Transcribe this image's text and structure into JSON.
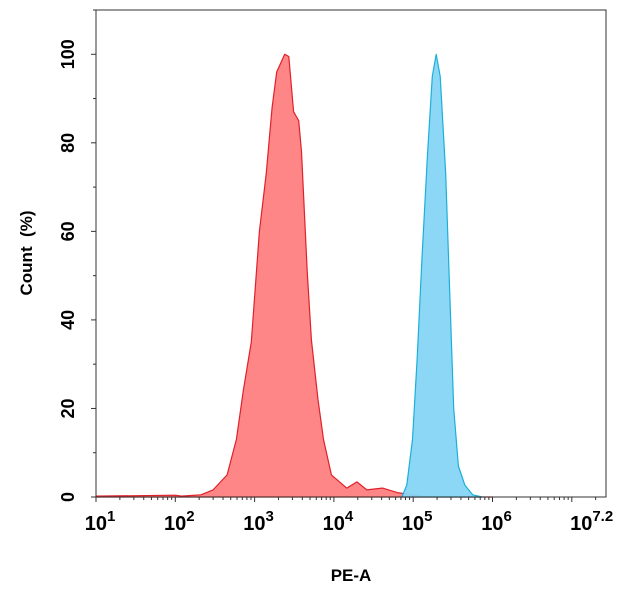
{
  "chart_data": {
    "type": "area",
    "xlabel": "PE-A",
    "ylabel": "Count  (%)",
    "xscale": "log",
    "xlim": [
      10,
      27000000
    ],
    "ylim": [
      0,
      110
    ],
    "grid": false,
    "x_ticks": [
      {
        "base": "10",
        "exp": "1",
        "value": 10
      },
      {
        "base": "10",
        "exp": "2",
        "value": 100
      },
      {
        "base": "10",
        "exp": "3",
        "value": 1000
      },
      {
        "base": "10",
        "exp": "4",
        "value": 10000
      },
      {
        "base": "10",
        "exp": "5",
        "value": 100000
      },
      {
        "base": "10",
        "exp": "6",
        "value": 1000000
      },
      {
        "base": "10",
        "exp": "7.2",
        "value": 15848932
      }
    ],
    "y_ticks": [
      "0",
      "20",
      "40",
      "60",
      "80",
      "100"
    ],
    "series": [
      {
        "color": "#ff8080",
        "stroke": "#e0202a",
        "x": [
          10,
          32,
          100,
          120,
          210,
          300,
          450,
          590,
          720,
          910,
          1150,
          1400,
          1660,
          1900,
          2400,
          2700,
          3100,
          3600,
          3900,
          4600,
          5200,
          6300,
          7400,
          9300,
          14500,
          19500,
          26000,
          41000,
          63000,
          98000,
          150000,
          1000000
        ],
        "y": [
          0.2,
          0.3,
          0.4,
          0.2,
          0.5,
          1.6,
          5,
          13,
          24,
          35,
          60,
          73,
          88,
          96,
          100,
          99.5,
          87,
          85,
          78,
          51,
          35.5,
          22,
          13,
          5,
          2,
          3.4,
          1.6,
          2,
          1,
          0.5,
          0,
          0
        ]
      },
      {
        "color": "#87d5f5",
        "stroke": "#1ab0d8",
        "x": [
          72000,
          83000,
          98000,
          112000,
          129000,
          151000,
          174000,
          195000,
          219000,
          257000,
          288000,
          324000,
          372000,
          447000,
          562000,
          741000
        ],
        "y": [
          0,
          2.7,
          13,
          31,
          54,
          77,
          95,
          100,
          95,
          73,
          47,
          20,
          7,
          2.7,
          0.5,
          0
        ]
      }
    ]
  }
}
